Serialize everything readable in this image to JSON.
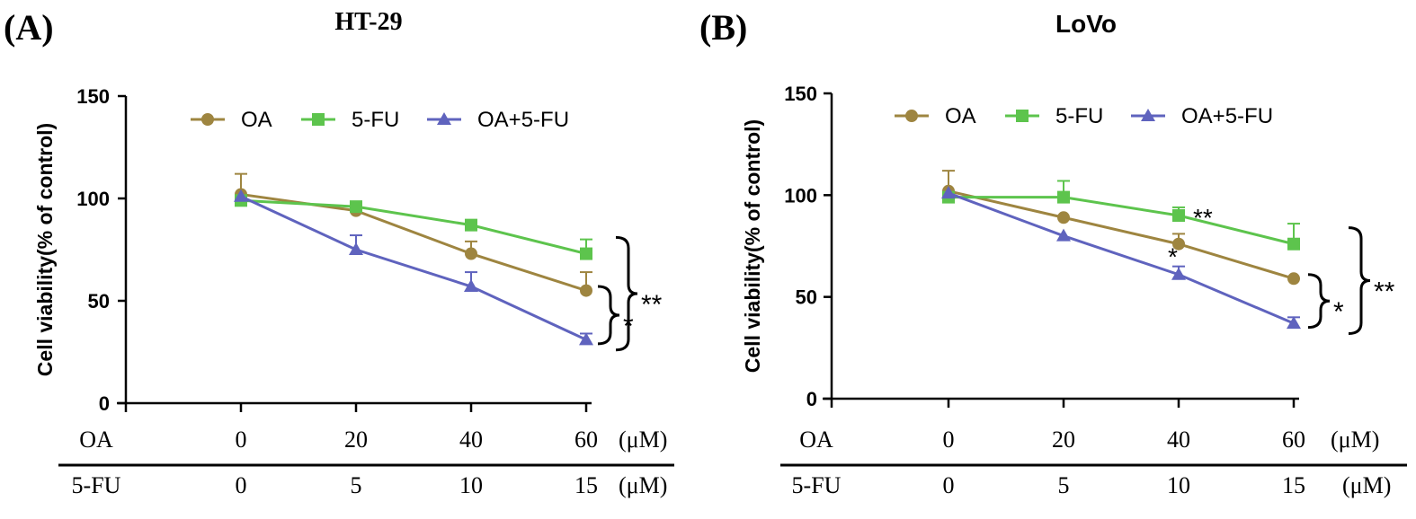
{
  "chart_data": [
    {
      "type": "line",
      "panel_label": "(A)",
      "title": "HT-29",
      "xlabel_rows": [
        {
          "label": "OA",
          "ticks": [
            "0",
            "20",
            "40",
            "60"
          ],
          "unit": "(μM)"
        },
        {
          "label": "5-FU",
          "ticks": [
            "0",
            "5",
            "10",
            "15"
          ],
          "unit": "(μM)"
        }
      ],
      "ylabel": "Cell viability(% of control)",
      "ylim": [
        0,
        150
      ],
      "yticks": [
        "0",
        "50",
        "100",
        "150"
      ],
      "legend": [
        "OA",
        "5-FU",
        "OA+5-FU"
      ],
      "series": [
        {
          "name": "OA",
          "color": "#9E8540",
          "marker": "circle",
          "values": [
            102,
            94,
            73,
            55
          ],
          "errors": [
            10,
            0,
            6,
            9
          ]
        },
        {
          "name": "5-FU",
          "color": "#5DC44D",
          "marker": "square",
          "values": [
            99,
            96,
            87,
            73
          ],
          "errors": [
            0,
            0,
            0,
            7
          ]
        },
        {
          "name": "OA+5-FU",
          "color": "#5F63BE",
          "marker": "triangle",
          "values": [
            101,
            75,
            57,
            31
          ],
          "errors": [
            0,
            7,
            7,
            3
          ]
        }
      ],
      "annotations": [
        {
          "text": "*",
          "type": "bracket",
          "from": "OA",
          "to": "OA+5-FU",
          "at": "60"
        },
        {
          "text": "**",
          "type": "bracket",
          "from": "5-FU",
          "to": "OA+5-FU",
          "at": "60"
        }
      ]
    },
    {
      "type": "line",
      "panel_label": "(B)",
      "title": "LoVo",
      "xlabel_rows": [
        {
          "label": "OA",
          "ticks": [
            "0",
            "20",
            "40",
            "60"
          ],
          "unit": "(μM)"
        },
        {
          "label": "5-FU",
          "ticks": [
            "0",
            "5",
            "10",
            "15"
          ],
          "unit": "(μM)"
        }
      ],
      "ylabel": "Cell viability(% of control)",
      "ylim": [
        0,
        150
      ],
      "yticks": [
        "0",
        "50",
        "100",
        "150"
      ],
      "legend": [
        "OA",
        "5-FU",
        "OA+5-FU"
      ],
      "series": [
        {
          "name": "OA",
          "color": "#9E8540",
          "marker": "circle",
          "values": [
            102,
            89,
            76,
            59
          ],
          "errors": [
            10,
            0,
            5,
            0
          ]
        },
        {
          "name": "5-FU",
          "color": "#5DC44D",
          "marker": "square",
          "values": [
            99,
            99,
            90,
            76
          ],
          "errors": [
            0,
            8,
            4,
            10
          ]
        },
        {
          "name": "OA+5-FU",
          "color": "#5F63BE",
          "marker": "triangle",
          "values": [
            101,
            80,
            61,
            37
          ],
          "errors": [
            0,
            0,
            4,
            3
          ]
        }
      ],
      "annotations": [
        {
          "text": "**",
          "type": "point",
          "series": "5-FU",
          "at": "40"
        },
        {
          "text": "*",
          "type": "point",
          "series": "OA",
          "at": "40"
        },
        {
          "text": "*",
          "type": "bracket",
          "from": "OA",
          "to": "OA+5-FU",
          "at": "60"
        },
        {
          "text": "**",
          "type": "bracket",
          "from": "5-FU",
          "to": "OA+5-FU",
          "at": "60"
        }
      ]
    }
  ]
}
